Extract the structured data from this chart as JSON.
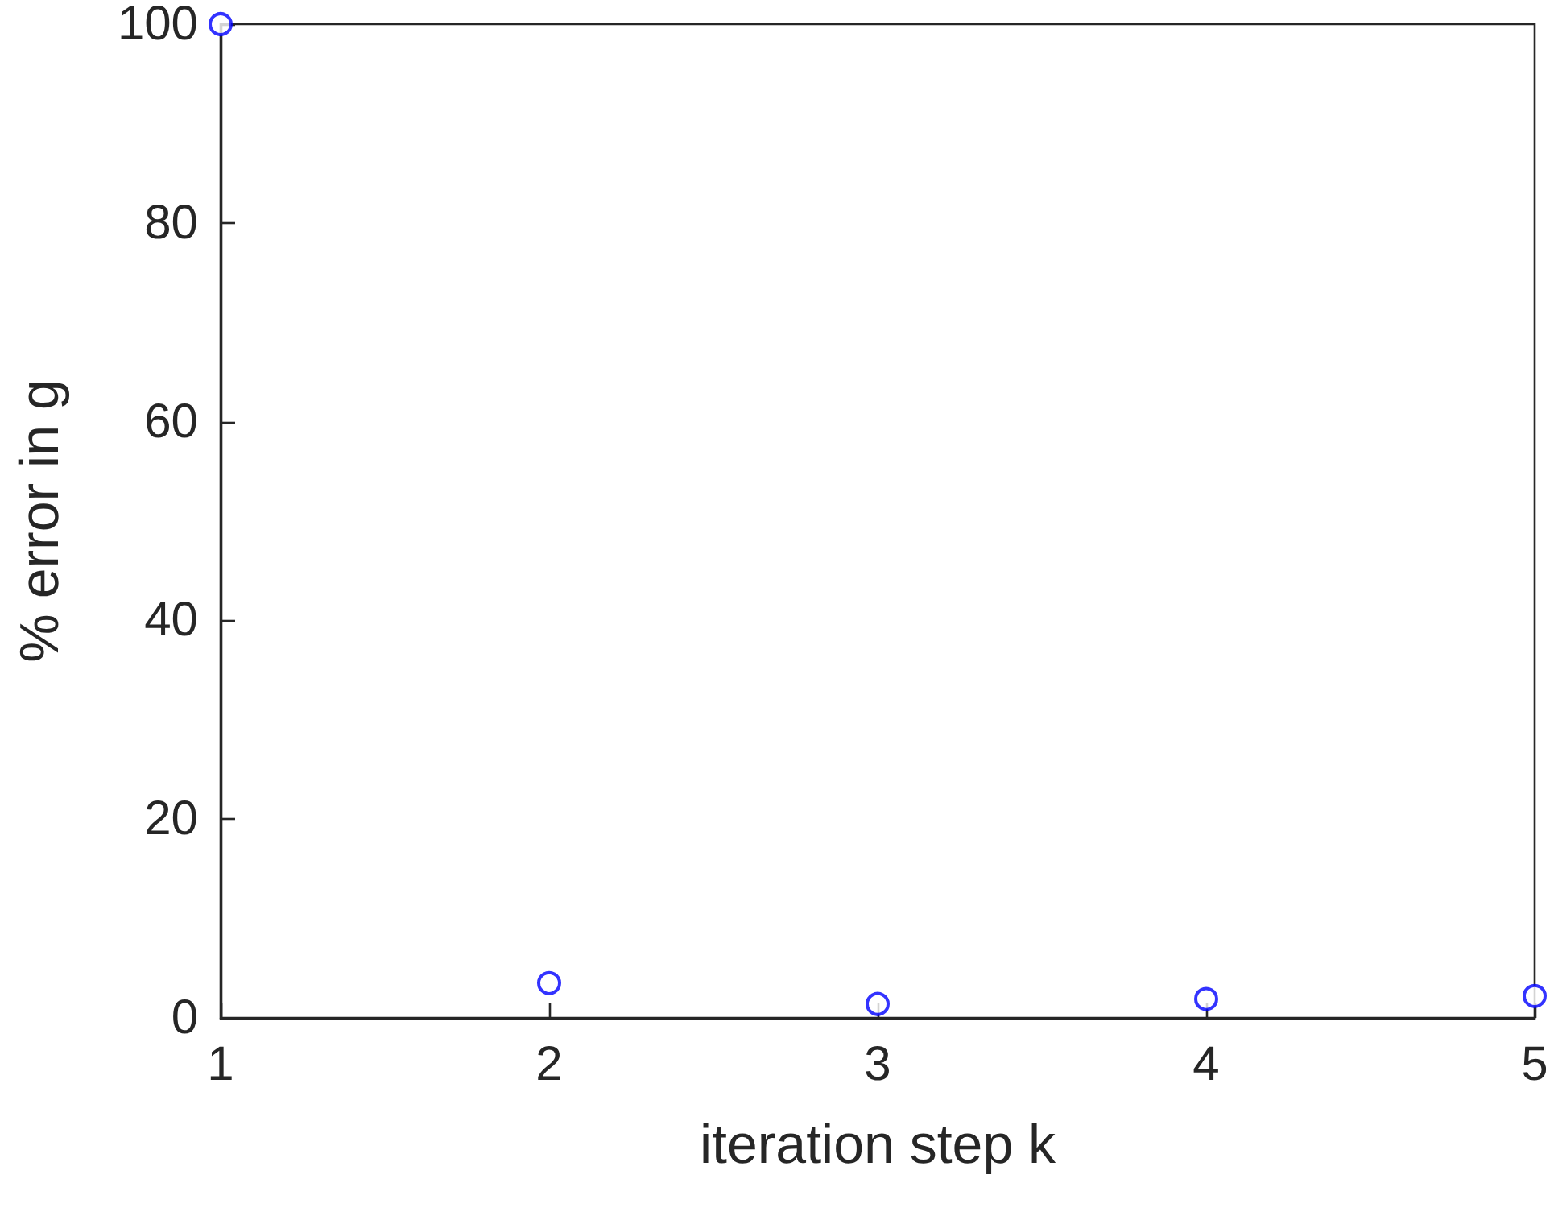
{
  "chart_data": {
    "type": "scatter",
    "xlabel": "iteration step k",
    "ylabel": "% error in g",
    "x": [
      1,
      2,
      3,
      4,
      5
    ],
    "series": [
      {
        "color": "#0000ff",
        "values": [
          100,
          3.5,
          1.4,
          1.9,
          2.2
        ]
      }
    ],
    "xlim": [
      1,
      5
    ],
    "xticks": [
      1,
      2,
      3,
      4,
      5
    ],
    "ylim": [
      0,
      100
    ],
    "yticks": [
      0,
      20,
      40,
      60,
      80,
      100
    ],
    "marker": "circle",
    "grid": false
  }
}
